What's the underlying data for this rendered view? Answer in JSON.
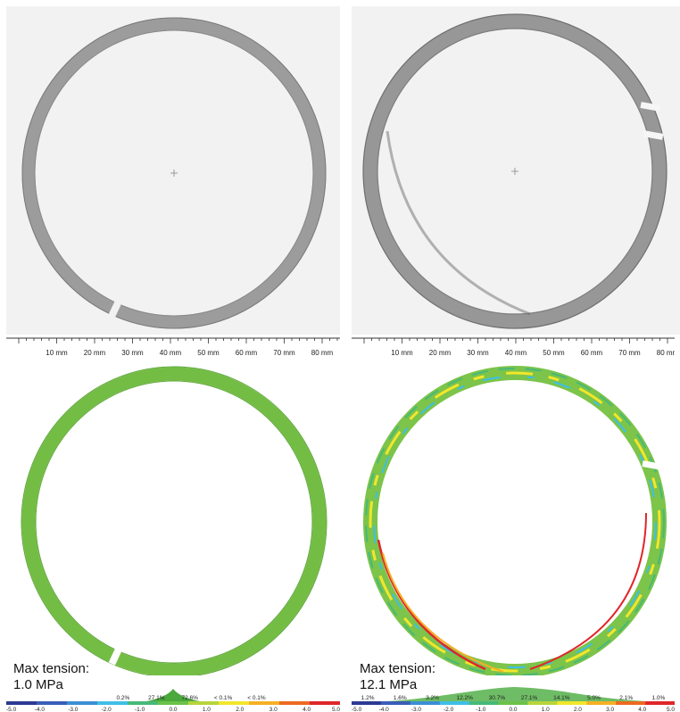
{
  "ruler": {
    "ticks": [
      "10 mm",
      "20 mm",
      "30 mm",
      "40 mm",
      "50 mm",
      "60 mm",
      "70 mm",
      "80 mm"
    ]
  },
  "colorbar": {
    "tick_labels": [
      "-5.0",
      "-4.0",
      "-3.0",
      "-2.0",
      "-1.0",
      "0.0",
      "1.0",
      "2.0",
      "3.0",
      "4.0",
      "5.0"
    ],
    "colors": [
      "#2c3a92",
      "#3a5db8",
      "#3c8fd4",
      "#3fbfe6",
      "#46b979",
      "#6cc24a",
      "#b7d53c",
      "#f2e62c",
      "#f5b026",
      "#ec6a22",
      "#e0262a"
    ]
  },
  "left": {
    "tension_label": "Max tension:",
    "tension_value": "1.0 MPa",
    "percentages": [
      "",
      "",
      "",
      "0.2%",
      "27.1%",
      "72.6%",
      "< 0.1%",
      "< 0.1%",
      "",
      ""
    ],
    "histogram_peak_value": 0.2
  },
  "right": {
    "tension_label": "Max tension:",
    "tension_value": "12.1 MPa",
    "percentages": [
      "1.2%",
      "1.6%",
      "3.2%",
      "12.2%",
      "30.7%",
      "27.1%",
      "14.1%",
      "5.0%",
      "2.1%",
      "1.0%"
    ],
    "histogram_peak_value": 0.0
  }
}
